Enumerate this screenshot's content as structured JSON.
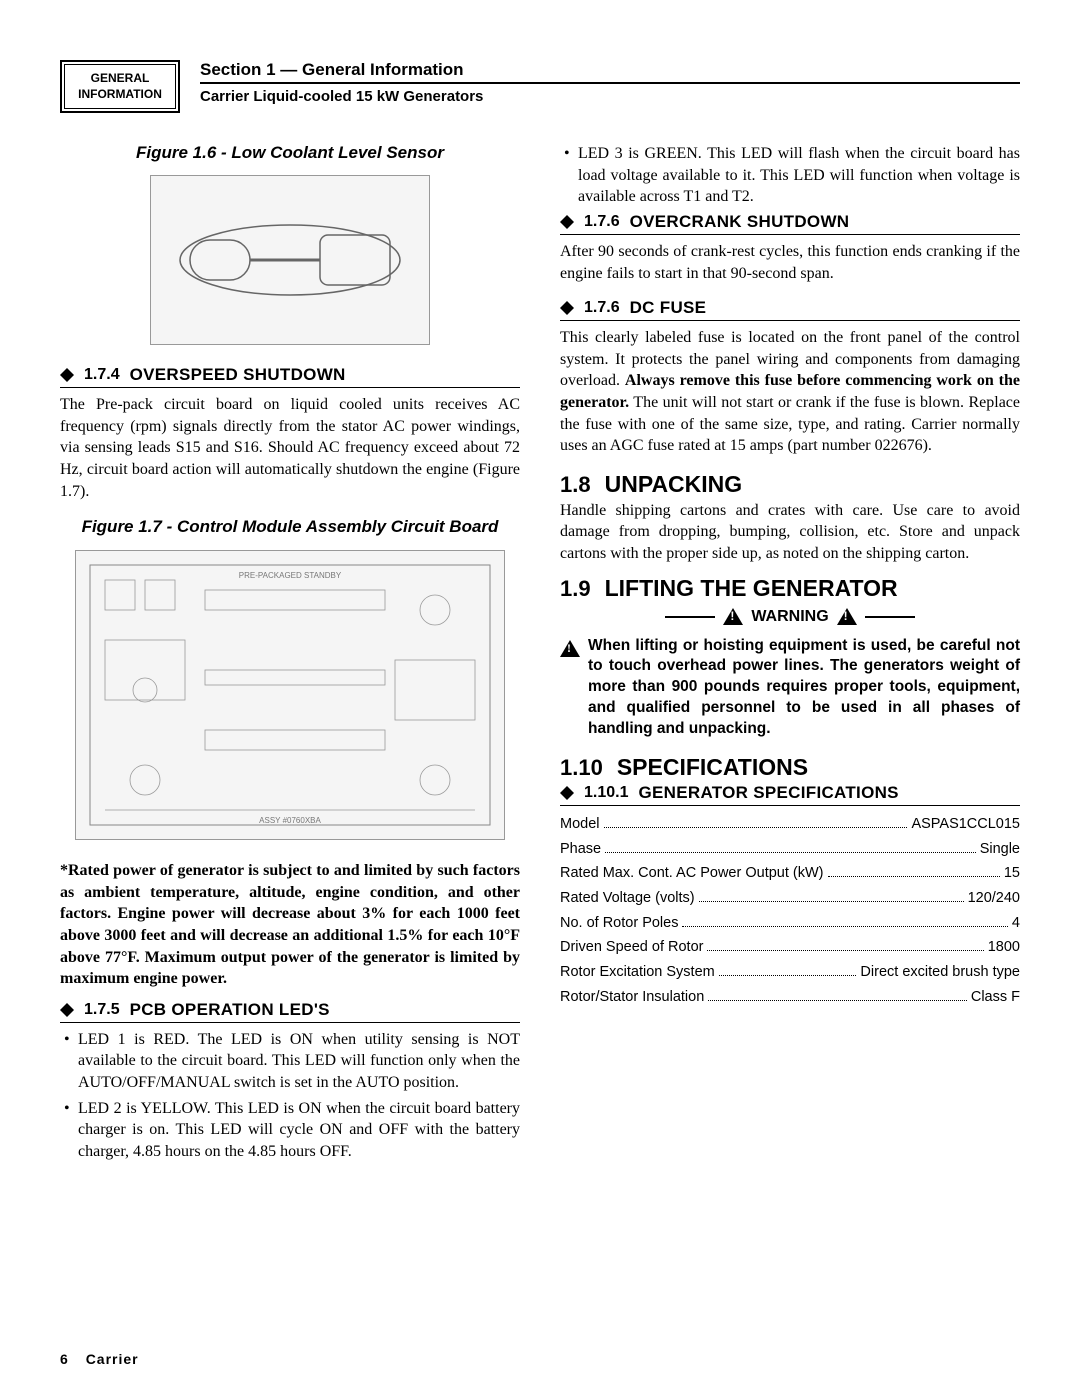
{
  "header": {
    "tab_line1": "GENERAL",
    "tab_line2": "INFORMATION",
    "section_title": "Section 1 — General Information",
    "doc_title": "Carrier Liquid-cooled 15 kW Generators"
  },
  "left": {
    "fig16_caption": "Figure 1.6 - Low Coolant Level Sensor",
    "s174": {
      "num": "1.7.4",
      "name": "OVERSPEED SHUTDOWN",
      "body": "The Pre-pack circuit board on liquid cooled units receives AC frequency (rpm) signals directly from the stator AC power windings, via sensing leads S15 and S16. Should AC frequency exceed about 72 Hz, circuit board action will automatically shutdown the engine (Figure 1.7)."
    },
    "fig17_caption": "Figure 1.7 - Control Module Assembly Circuit Board",
    "rated_power_note": "*Rated power of generator is subject to and limited by such factors as ambient temperature, altitude, engine condition, and other factors. Engine power will decrease about 3% for each 1000 feet above 3000 feet and will decrease an additional 1.5% for each 10°F above 77°F.  Maximum output power of the generator is limited by maximum engine power.",
    "s175": {
      "num": "1.7.5",
      "name": "PCB OPERATION LED'S",
      "items": [
        "LED 1 is RED. The LED is ON when utility sensing is NOT available to the circuit board. This LED will function only when the AUTO/OFF/MANUAL switch is set in the AUTO position.",
        "LED 2 is YELLOW. This LED is ON when the circuit board battery charger is on. This LED will cycle ON and OFF with the battery charger, 4.85 hours on the 4.85 hours OFF."
      ]
    }
  },
  "right": {
    "led3": "LED 3 is GREEN. This LED will flash when the circuit board has load voltage available to it. This LED will function when voltage is available across T1 and T2.",
    "s176a": {
      "num": "1.7.6",
      "name": "OVERCRANK SHUTDOWN",
      "body": "After 90 seconds of crank-rest cycles, this function ends cranking if the engine fails to start in that 90-second span."
    },
    "s176b": {
      "num": "1.7.6",
      "name": "DC FUSE",
      "body_pre": "This clearly labeled fuse is located on the front panel of the control system. It protects the panel wiring and components from damaging overload. ",
      "body_bold": "Always remove this fuse before commencing work on the generator.",
      "body_post": "  The unit will not start or crank if the fuse is blown.  Replace the fuse with one of the same size, type, and rating. Carrier normally uses an AGC fuse rated at 15 amps (part number 022676)."
    },
    "s18": {
      "num": "1.8",
      "name": "UNPACKING",
      "body": "Handle shipping cartons and crates with care. Use care to avoid damage from dropping, bumping, collision, etc. Store and unpack cartons with the proper side up, as noted on the shipping carton."
    },
    "s19": {
      "num": "1.9",
      "name": "LIFTING THE GENERATOR",
      "warning_label": "WARNING",
      "warning_text": "When lifting or hoisting equipment is used, be careful not to touch overhead power lines. The generators weight of more than 900 pounds requires proper tools, equipment, and qualified personnel to be used in all phases of handling and unpacking."
    },
    "s110": {
      "num": "1.10",
      "name": "SPECIFICATIONS",
      "sub_num": "1.10.1",
      "sub_name": "GENERATOR SPECIFICATIONS",
      "specs": [
        {
          "label": "Model",
          "value": "ASPAS1CCL015"
        },
        {
          "label": "Phase",
          "value": "Single"
        },
        {
          "label": "Rated Max. Cont. AC Power Output (kW)",
          "value": "15"
        },
        {
          "label": "Rated Voltage (volts)",
          "value": "120/240"
        },
        {
          "label": "No. of Rotor Poles",
          "value": "4"
        },
        {
          "label": "Driven Speed of Rotor",
          "value": "1800"
        },
        {
          "label": "Rotor Excitation System",
          "value": "Direct excited brush type"
        },
        {
          "label": "Rotor/Stator Insulation",
          "value": "Class F"
        }
      ]
    }
  },
  "footer": {
    "page": "6",
    "brand": "Carrier"
  }
}
